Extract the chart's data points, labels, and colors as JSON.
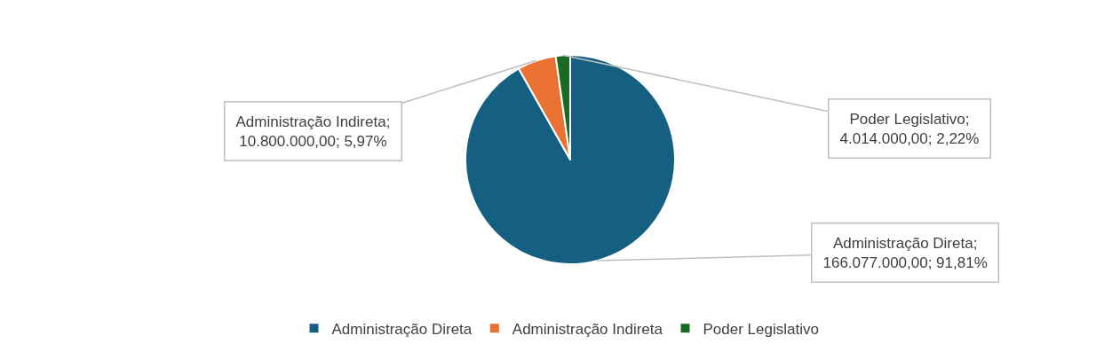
{
  "chart_data": {
    "type": "pie",
    "categories": [
      "Administração Direta",
      "Administração Indireta",
      "Poder Legislativo"
    ],
    "values": [
      166077000,
      10800000,
      4014000
    ],
    "colors": [
      "#156082",
      "#e97132",
      "#196b24"
    ],
    "value_labels": [
      "Administração Direta; 166.077.000,00; 91,81%",
      "Administração Indireta; 10.800.000,00; 5,97%",
      "Poder Legislativo; 4.014.000,00; 2,22%"
    ],
    "legend": "bottom"
  }
}
